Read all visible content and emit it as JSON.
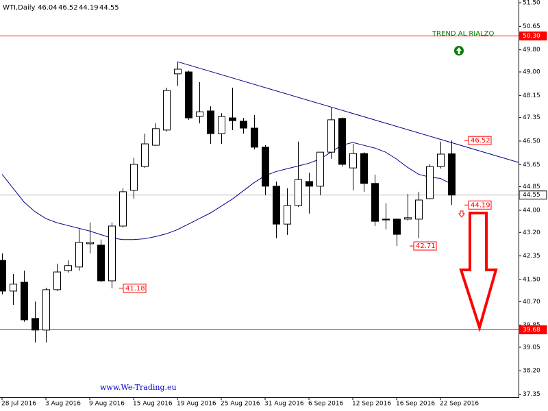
{
  "chart_data": {
    "type": "candlestick",
    "title": "WTI,Daily",
    "categories": [
      "28 Jul 2016",
      null,
      null,
      null,
      "3 Aug 2016",
      null,
      null,
      null,
      "9 Aug 2016",
      null,
      null,
      null,
      "15 Aug 2016",
      null,
      null,
      null,
      "19 Aug 2016",
      null,
      null,
      null,
      "25 Aug 2016",
      null,
      null,
      null,
      "31 Aug 2016",
      null,
      null,
      null,
      "6 Sep 2016",
      null,
      null,
      null,
      "12 Sep 2016",
      null,
      null,
      null,
      "16 Sep 2016",
      null,
      null,
      null,
      "22 Sep 2016",
      null
    ],
    "open": [
      42.19,
      41.08,
      41.4,
      40.09,
      39.67,
      41.13,
      41.82,
      41.95,
      42.79,
      42.74,
      41.45,
      43.43,
      44.72,
      45.58,
      46.35,
      46.9,
      48.93,
      49.0,
      47.39,
      47.59,
      46.77,
      47.34,
      47.22,
      46.97,
      46.28,
      44.87,
      43.5,
      44.17,
      45.04,
      44.87,
      46.1,
      47.32,
      45.53,
      46.05,
      44.97,
      43.68,
      43.68,
      43.68,
      43.68,
      44.42,
      45.58,
      46.04
    ],
    "high": [
      42.44,
      41.7,
      41.82,
      40.7,
      41.2,
      42.07,
      42.19,
      43.31,
      43.56,
      42.94,
      43.56,
      44.79,
      45.9,
      46.77,
      47.14,
      48.43,
      49.37,
      49.05,
      48.63,
      47.76,
      47.51,
      48.43,
      47.34,
      47.44,
      46.35,
      45.04,
      44.79,
      46.48,
      45.36,
      46.1,
      47.71,
      47.35,
      46.4,
      46.1,
      45.29,
      44.25,
      43.7,
      44.59,
      44.67,
      45.66,
      46.48,
      46.52
    ],
    "low": [
      40.96,
      40.58,
      39.97,
      39.22,
      39.22,
      41.08,
      41.75,
      41.82,
      42.44,
      41.4,
      41.18,
      43.38,
      44.42,
      45.53,
      46.33,
      46.85,
      48.5,
      47.27,
      47.14,
      46.4,
      46.4,
      46.9,
      46.77,
      46.2,
      44.54,
      42.99,
      43.11,
      44.12,
      43.88,
      44.54,
      45.86,
      45.58,
      44.72,
      44.67,
      43.43,
      43.31,
      42.71,
      43.63,
      42.99,
      44.4,
      45.51,
      44.19
    ],
    "close": [
      41.08,
      41.33,
      40.04,
      39.67,
      41.13,
      41.77,
      42.0,
      42.84,
      42.84,
      41.45,
      43.43,
      44.67,
      45.66,
      46.4,
      46.95,
      48.33,
      49.1,
      47.34,
      47.56,
      46.77,
      47.39,
      47.24,
      46.97,
      46.28,
      44.87,
      43.5,
      44.17,
      45.11,
      44.87,
      46.1,
      47.27,
      45.66,
      46.05,
      44.97,
      43.6,
      43.65,
      43.13,
      43.73,
      44.37,
      45.58,
      46.03,
      44.55
    ],
    "ma": {
      "color": "#00008b",
      "values": [
        45.3,
        44.8,
        44.3,
        43.95,
        43.7,
        43.55,
        43.45,
        43.35,
        43.25,
        43.12,
        43.0,
        42.94,
        42.94,
        42.97,
        43.05,
        43.15,
        43.3,
        43.5,
        43.7,
        43.9,
        44.15,
        44.4,
        44.7,
        45.0,
        45.25,
        45.4,
        45.5,
        45.6,
        45.7,
        45.85,
        46.1,
        46.35,
        46.45,
        46.35,
        46.25,
        46.1,
        45.85,
        45.55,
        45.3,
        45.2,
        45.15,
        44.95
      ]
    },
    "trendline": {
      "color": "#00008b",
      "from": 49.37,
      "to": 45.73
    },
    "levels": [
      {
        "value": 50.3,
        "label": "50.30",
        "color": "#ff0000"
      },
      {
        "value": 39.68,
        "label": "39.68",
        "color": "#ff0000"
      },
      {
        "value": 44.55,
        "label": "44.55",
        "color": "#c0c0c0"
      }
    ],
    "price_labels": [
      46.52,
      44.19,
      42.71,
      41.18
    ],
    "annotation": "TREND AL RIALZO",
    "watermark": "www.We-Trading.eu",
    "ylim": [
      37.24,
      51.6
    ],
    "yticks": [
      {
        "value": 51.5,
        "label": "51.50"
      },
      {
        "value": 50.65,
        "label": "50.65"
      },
      {
        "value": 49.8,
        "label": "49.80"
      },
      {
        "value": 49.0,
        "label": "49.00"
      },
      {
        "value": 48.15,
        "label": "48.15"
      },
      {
        "value": 47.35,
        "label": "47.35"
      },
      {
        "value": 46.5,
        "label": "46.50"
      },
      {
        "value": 45.65,
        "label": "45.65"
      },
      {
        "value": 44.85,
        "label": "44.85"
      },
      {
        "value": 44.0,
        "label": "44.00"
      },
      {
        "value": 43.2,
        "label": "43.20"
      },
      {
        "value": 42.35,
        "label": "42.35"
      },
      {
        "value": 41.5,
        "label": "41.50"
      },
      {
        "value": 40.7,
        "label": "40.70"
      },
      {
        "value": 39.85,
        "label": "39.85"
      },
      {
        "value": 39.05,
        "label": "39.05"
      },
      {
        "value": 38.2,
        "label": "38.20"
      },
      {
        "value": 37.35,
        "label": "37.35"
      }
    ]
  }
}
